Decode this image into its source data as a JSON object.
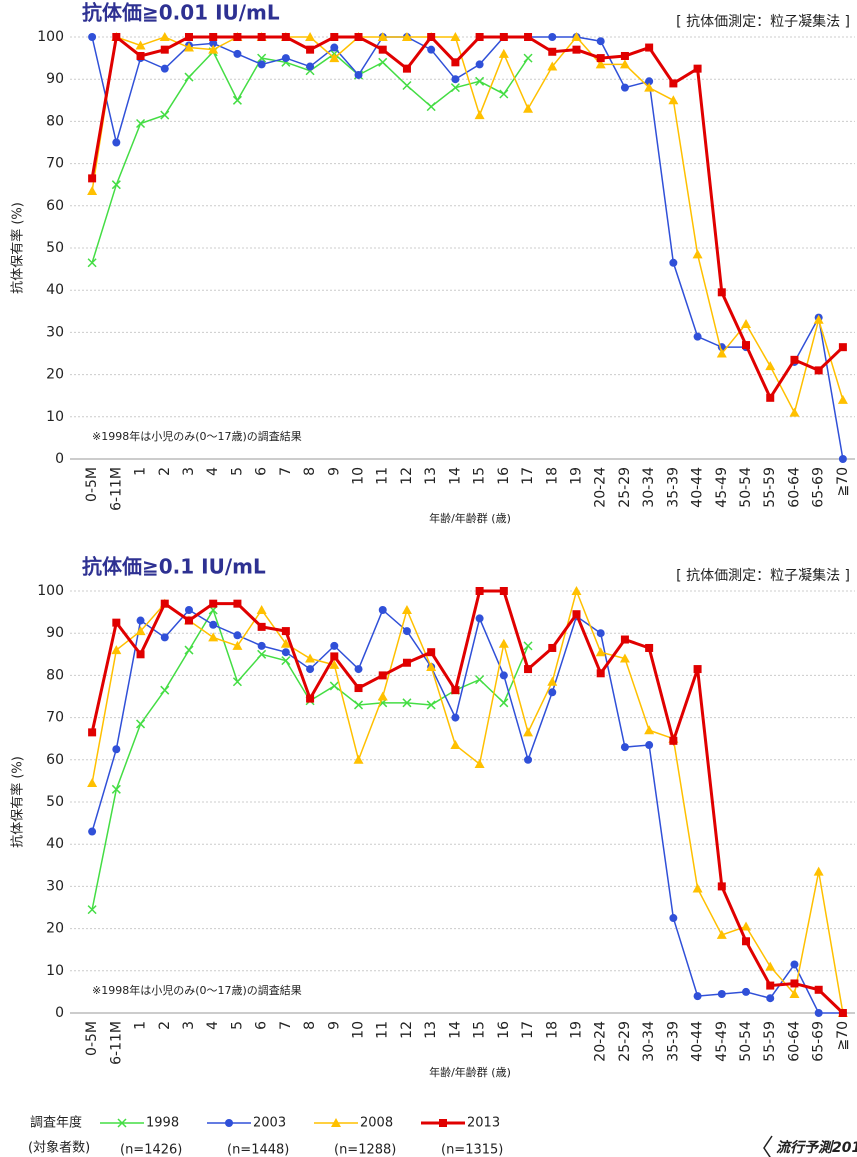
{
  "chart_data": [
    {
      "type": "line",
      "title": "抗体価≧0.01 IU/mL",
      "method": "[ 抗体価測定：粒子凝集法 ]",
      "note": "※1998年は小児のみ(0〜17歳)の調査結果",
      "x_label": "年齢/年齢群 (歳)",
      "y_label": "抗体保有率 (%)",
      "categories": [
        "0-5M",
        "6-11M",
        "1",
        "2",
        "3",
        "4",
        "5",
        "6",
        "7",
        "8",
        "9",
        "10",
        "11",
        "12",
        "13",
        "14",
        "15",
        "16",
        "17",
        "18",
        "19",
        "20-24",
        "25-29",
        "30-34",
        "35-39",
        "40-44",
        "45-49",
        "50-54",
        "55-59",
        "60-64",
        "65-69",
        "≧70"
      ],
      "ylim": [
        0,
        100
      ],
      "yticks": [
        0,
        10,
        20,
        30,
        40,
        50,
        60,
        70,
        80,
        90,
        100
      ],
      "grid": true,
      "series": [
        {
          "name": "1998",
          "color": "#44dd44",
          "marker": "x",
          "values": [
            46.5,
            65,
            79.5,
            81.5,
            90.5,
            96.5,
            85,
            95,
            94,
            92,
            96,
            91,
            94,
            88.5,
            83.5,
            88,
            89.5,
            86.5,
            95,
            null,
            null,
            null,
            null,
            null,
            null,
            null,
            null,
            null,
            null,
            null,
            null,
            null
          ]
        },
        {
          "name": "2003",
          "color": "#3050d8",
          "marker": "circle",
          "values": [
            100,
            75,
            95,
            92.5,
            98,
            98.5,
            96,
            93.5,
            95,
            93,
            97.5,
            91,
            100,
            100,
            97,
            90,
            93.5,
            100,
            100,
            100,
            100,
            99,
            88,
            89.5,
            46.5,
            29,
            26.5,
            26.5,
            null,
            23,
            33.5,
            0
          ]
        },
        {
          "name": "2008",
          "color": "#ffc000",
          "marker": "triangle",
          "values": [
            63.5,
            100,
            98,
            100,
            97.5,
            97,
            100,
            100,
            100,
            100,
            95,
            100,
            100,
            100,
            100,
            100,
            81.5,
            96,
            83,
            93,
            100,
            93.5,
            93.5,
            88,
            85,
            48.5,
            25,
            32,
            22,
            11,
            33,
            14
          ]
        },
        {
          "name": "2013",
          "color": "#e00000",
          "marker": "square",
          "values": [
            66.5,
            100,
            95.5,
            97,
            100,
            100,
            100,
            100,
            100,
            97,
            100,
            100,
            97,
            92.5,
            100,
            94,
            100,
            100,
            100,
            96.5,
            97,
            95,
            95.5,
            97.5,
            89,
            92.5,
            39.5,
            27,
            14.5,
            23.5,
            21,
            26.5
          ]
        }
      ]
    },
    {
      "type": "line",
      "title": "抗体価≧0.1 IU/mL",
      "method": "[ 抗体価測定：粒子凝集法 ]",
      "note": "※1998年は小児のみ(0〜17歳)の調査結果",
      "x_label": "年齢/年齢群 (歳)",
      "y_label": "抗体保有率 (%)",
      "categories": [
        "0-5M",
        "6-11M",
        "1",
        "2",
        "3",
        "4",
        "5",
        "6",
        "7",
        "8",
        "9",
        "10",
        "11",
        "12",
        "13",
        "14",
        "15",
        "16",
        "17",
        "18",
        "19",
        "20-24",
        "25-29",
        "30-34",
        "35-39",
        "40-44",
        "45-49",
        "50-54",
        "55-59",
        "60-64",
        "65-69",
        "≧70"
      ],
      "ylim": [
        0,
        100
      ],
      "yticks": [
        0,
        10,
        20,
        30,
        40,
        50,
        60,
        70,
        80,
        90,
        100
      ],
      "grid": true,
      "series": [
        {
          "name": "1998",
          "color": "#44dd44",
          "marker": "x",
          "values": [
            24.5,
            53,
            68.5,
            76.5,
            86,
            95.5,
            78.5,
            85,
            83.5,
            74,
            77.5,
            73,
            73.5,
            73.5,
            73,
            76.5,
            79,
            73.5,
            87,
            null,
            null,
            null,
            null,
            null,
            null,
            null,
            null,
            null,
            null,
            null,
            null,
            null
          ]
        },
        {
          "name": "2003",
          "color": "#3050d8",
          "marker": "circle",
          "values": [
            43,
            62.5,
            93,
            89,
            95.5,
            92,
            89.5,
            87,
            85.5,
            81.5,
            87,
            81.5,
            95.5,
            90.5,
            82,
            70,
            93.5,
            80,
            60,
            76,
            94,
            90,
            63,
            63.5,
            22.5,
            4,
            4.5,
            5,
            3.5,
            11.5,
            0,
            0
          ]
        },
        {
          "name": "2008",
          "color": "#ffc000",
          "marker": "triangle",
          "values": [
            54.5,
            86,
            90.5,
            97,
            93,
            89,
            87,
            95.5,
            87.5,
            84,
            82.5,
            60,
            75,
            95.5,
            82,
            63.5,
            59,
            87.5,
            66.5,
            78.5,
            100,
            85.5,
            84,
            67,
            65,
            29.5,
            18.5,
            20.5,
            11,
            4.5,
            33.5,
            0
          ]
        },
        {
          "name": "2013",
          "color": "#e00000",
          "marker": "square",
          "values": [
            66.5,
            92.5,
            85,
            97,
            93,
            97,
            97,
            91.5,
            90.5,
            74.5,
            84.5,
            77,
            80,
            83,
            85.5,
            76.5,
            100,
            100,
            81.5,
            86.5,
            94.5,
            80.5,
            88.5,
            86.5,
            64.5,
            81.5,
            30,
            17,
            6.5,
            7,
            5.5,
            0
          ]
        }
      ]
    }
  ],
  "legend": {
    "title": "調査年度",
    "subtitle": "(対象者数)",
    "counts": [
      "(n=1426)",
      "(n=1448)",
      "(n=1288)",
      "(n=1315)"
    ]
  },
  "footer": "流行予測201"
}
